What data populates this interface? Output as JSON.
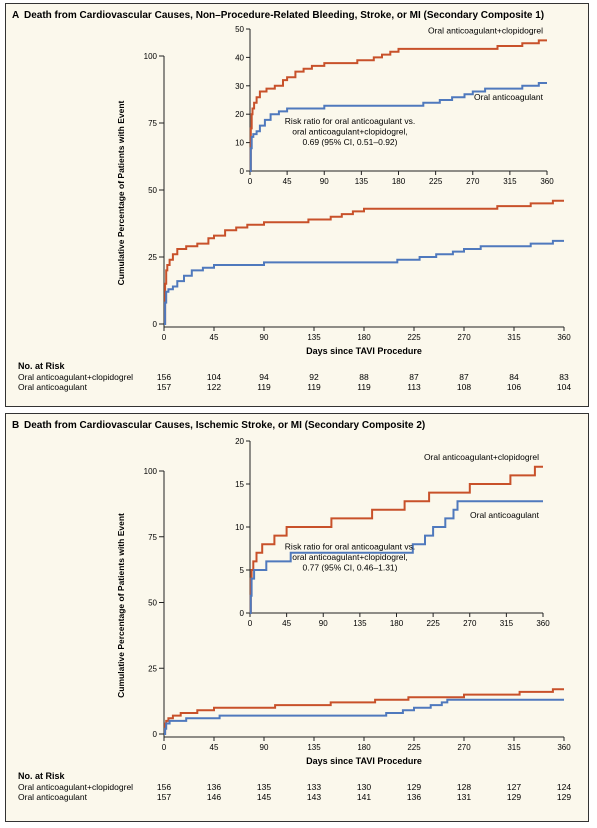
{
  "colors": {
    "combo": "#c8512a",
    "oac": "#4f79bd",
    "panel_bg": "#fbf8ec",
    "axis": "#222222"
  },
  "chart_data": [
    {
      "type": "line",
      "panel": "A",
      "title": "Death from Cardiovascular Causes, Non–Procedure-Related Bleeding, Stroke, or MI (Secondary Composite 1)",
      "ylabel": "Cumulative Percentage of Patients with Event",
      "xlabel": "Days since TAVI Procedure",
      "xlim": [
        0,
        360
      ],
      "ylim": [
        0,
        100
      ],
      "xticks": [
        0,
        45,
        90,
        135,
        180,
        225,
        270,
        315,
        360
      ],
      "yticks": [
        0,
        25,
        50,
        75,
        100
      ],
      "series": [
        {
          "name": "Oral anticoagulant+clopidogrel",
          "color": "#c8512a",
          "x": [
            0,
            1,
            2,
            3,
            5,
            8,
            12,
            20,
            30,
            40,
            45,
            55,
            65,
            75,
            90,
            110,
            130,
            150,
            160,
            170,
            180,
            190,
            220,
            270,
            300,
            315,
            330,
            345,
            350,
            360
          ],
          "y": [
            0,
            15,
            20,
            22,
            24,
            26,
            28,
            29,
            30,
            32,
            33,
            35,
            36,
            37,
            38,
            38,
            39,
            40,
            41,
            42,
            43,
            43,
            43,
            43,
            44,
            44,
            45,
            45,
            46,
            46
          ]
        },
        {
          "name": "Oral anticoagulant",
          "color": "#4f79bd",
          "x": [
            0,
            1,
            2,
            4,
            8,
            12,
            18,
            25,
            35,
            45,
            60,
            90,
            150,
            210,
            230,
            245,
            260,
            270,
            285,
            300,
            330,
            345,
            350,
            360
          ],
          "y": [
            0,
            8,
            12,
            13,
            14,
            16,
            18,
            20,
            21,
            22,
            22,
            23,
            23,
            24,
            25,
            26,
            27,
            28,
            29,
            29,
            30,
            30,
            31,
            31
          ]
        }
      ],
      "inset": {
        "ylim": [
          0,
          50
        ],
        "yticks": [
          0,
          10,
          20,
          30,
          40,
          50
        ],
        "xticks": [
          0,
          45,
          90,
          135,
          180,
          225,
          270,
          315,
          360
        ],
        "annotation": [
          "Risk ratio for oral anticoagulant vs.",
          "oral anticoagulant+clopidogrel,",
          "0.69 (95% CI, 0.51–0.92)"
        ]
      },
      "at_risk": {
        "header": "No. at Risk",
        "rows": [
          {
            "label": "Oral anticoagulant+clopidogrel",
            "values": [
              "156",
              "104",
              "94",
              "92",
              "88",
              "87",
              "87",
              "84",
              "83"
            ]
          },
          {
            "label": "Oral anticoagulant",
            "values": [
              "157",
              "122",
              "119",
              "119",
              "119",
              "113",
              "108",
              "106",
              "104"
            ]
          }
        ]
      }
    },
    {
      "type": "line",
      "panel": "B",
      "title": "Death from Cardiovascular Causes, Ischemic Stroke, or MI (Secondary Composite 2)",
      "ylabel": "Cumulative Percentage of Patients with Event",
      "xlabel": "Days since TAVI Procedure",
      "xlim": [
        0,
        360
      ],
      "ylim": [
        0,
        100
      ],
      "xticks": [
        0,
        45,
        90,
        135,
        180,
        225,
        270,
        315,
        360
      ],
      "yticks": [
        0,
        25,
        50,
        75,
        100
      ],
      "series": [
        {
          "name": "Oral anticoagulant+clopidogrel",
          "color": "#c8512a",
          "x": [
            0,
            1,
            2,
            4,
            8,
            15,
            30,
            45,
            60,
            75,
            90,
            100,
            120,
            150,
            170,
            190,
            205,
            220,
            240,
            270,
            300,
            320,
            345,
            350,
            360
          ],
          "y": [
            0,
            4,
            5,
            6,
            7,
            8,
            9,
            10,
            10,
            10,
            10,
            11,
            11,
            12,
            12,
            13,
            13,
            14,
            14,
            15,
            15,
            16,
            16,
            17,
            17
          ]
        },
        {
          "name": "Oral anticoagulant",
          "color": "#4f79bd",
          "x": [
            0,
            1,
            2,
            5,
            10,
            20,
            30,
            50,
            90,
            140,
            160,
            200,
            215,
            225,
            240,
            250,
            255,
            300,
            330,
            360
          ],
          "y": [
            0,
            2,
            4,
            5,
            5,
            6,
            6,
            7,
            7,
            7,
            7,
            8,
            9,
            10,
            11,
            12,
            13,
            13,
            13,
            13
          ]
        }
      ],
      "inset": {
        "ylim": [
          0,
          20
        ],
        "yticks": [
          0,
          5,
          10,
          15,
          20
        ],
        "xticks": [
          0,
          45,
          90,
          135,
          180,
          225,
          270,
          315,
          360
        ],
        "annotation": [
          "Risk ratio for oral anticoagulant vs.",
          "oral anticoagulant+clopidogrel,",
          "0.77 (95% CI, 0.46–1.31)"
        ]
      },
      "at_risk": {
        "header": "No. at Risk",
        "rows": [
          {
            "label": "Oral anticoagulant+clopidogrel",
            "values": [
              "156",
              "136",
              "135",
              "133",
              "130",
              "129",
              "128",
              "127",
              "124"
            ]
          },
          {
            "label": "Oral anticoagulant",
            "values": [
              "157",
              "146",
              "145",
              "143",
              "141",
              "136",
              "131",
              "129",
              "129"
            ]
          }
        ]
      }
    }
  ]
}
